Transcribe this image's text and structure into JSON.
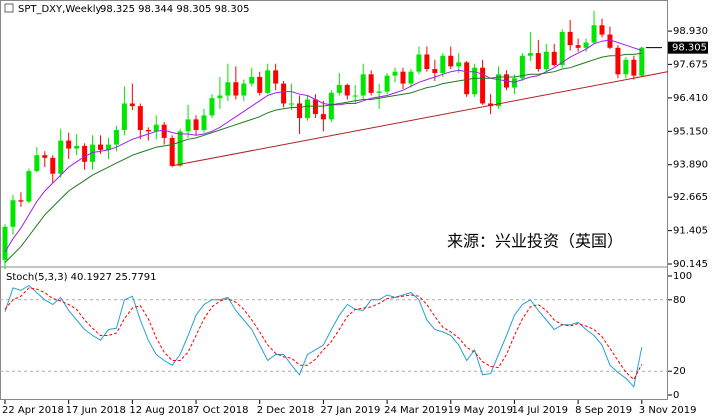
{
  "chart_data": [
    {
      "type": "candlestick",
      "title": "SPT_DXY,Weekly",
      "subtitle": "98.325 98.344 98.305 98.305",
      "open": [
        90.3,
        91.55,
        92.55,
        92.5,
        93.65,
        94.25,
        94.15,
        93.55,
        94.8,
        94.5,
        94.6,
        94.0,
        94.65,
        94.45,
        94.65,
        95.2,
        96.2,
        96.1,
        95.2,
        95.15,
        95.4,
        94.9,
        93.85,
        95.15,
        95.6,
        95.2,
        95.75,
        96.4,
        96.5,
        97.0,
        96.5,
        96.95,
        97.2,
        96.6,
        97.45,
        96.95,
        96.2,
        96.2,
        95.65,
        96.35,
        95.8,
        95.6,
        96.6,
        96.9,
        96.5,
        96.5,
        97.3,
        96.6,
        96.65,
        97.25,
        97.4,
        96.95,
        97.4,
        98.05,
        97.5,
        97.35,
        98.0,
        97.6,
        97.75,
        96.55,
        97.55,
        96.2,
        96.1,
        97.3,
        96.8,
        97.15,
        98.0,
        98.1,
        97.5,
        98.15,
        97.65,
        98.9,
        98.4,
        98.3,
        98.5,
        99.15,
        98.8,
        98.3,
        97.3,
        97.85,
        97.25
      ],
      "high": [
        91.65,
        92.75,
        92.85,
        93.75,
        94.55,
        94.4,
        94.25,
        95.25,
        95.1,
        95.05,
        94.7,
        95.0,
        95.0,
        94.9,
        95.35,
        96.85,
        96.95,
        96.2,
        95.3,
        95.75,
        95.5,
        95.0,
        95.25,
        96.15,
        95.75,
        96.0,
        96.55,
        97.2,
        97.7,
        97.6,
        97.1,
        97.55,
        97.4,
        97.7,
        97.7,
        97.05,
        96.95,
        96.5,
        96.5,
        96.55,
        96.3,
        96.7,
        97.35,
        96.95,
        96.9,
        97.7,
        97.45,
        96.95,
        97.35,
        97.55,
        97.55,
        97.5,
        98.35,
        98.35,
        97.85,
        98.1,
        98.35,
        98.1,
        97.8,
        97.7,
        97.85,
        96.55,
        97.6,
        97.45,
        97.3,
        98.1,
        98.9,
        98.6,
        98.45,
        98.45,
        99.0,
        99.35,
        98.65,
        98.65,
        99.7,
        99.4,
        99.1,
        98.4,
        97.95,
        98.0,
        98.35
      ],
      "low": [
        89.95,
        91.25,
        92.3,
        92.45,
        93.6,
        93.8,
        93.2,
        93.4,
        94.1,
        94.25,
        93.7,
        93.7,
        94.3,
        94.1,
        94.4,
        95.0,
        95.95,
        94.85,
        94.8,
        94.85,
        94.65,
        93.8,
        93.8,
        94.9,
        95.0,
        95.1,
        95.65,
        96.0,
        96.3,
        96.35,
        96.3,
        96.85,
        96.5,
        96.55,
        96.7,
        96.05,
        95.95,
        95.05,
        95.55,
        95.65,
        95.15,
        95.5,
        96.5,
        96.35,
        96.2,
        96.35,
        96.5,
        96.0,
        96.55,
        97.0,
        96.75,
        96.8,
        97.3,
        97.4,
        97.05,
        97.2,
        97.5,
        97.35,
        96.45,
        96.45,
        96.15,
        95.8,
        96.0,
        96.7,
        96.55,
        97.05,
        97.8,
        97.4,
        97.4,
        97.6,
        97.55,
        98.2,
        98.15,
        98.15,
        98.45,
        98.7,
        98.25,
        97.15,
        97.15,
        97.1,
        97.2
      ],
      "close": [
        91.55,
        92.55,
        92.5,
        93.65,
        94.25,
        94.15,
        93.55,
        94.8,
        94.5,
        94.6,
        94.0,
        94.65,
        94.45,
        94.65,
        95.2,
        96.2,
        96.1,
        95.2,
        95.15,
        95.4,
        94.9,
        93.85,
        95.15,
        95.6,
        95.2,
        95.75,
        96.4,
        96.5,
        97.0,
        96.5,
        96.95,
        97.2,
        96.6,
        97.45,
        96.95,
        96.2,
        96.2,
        95.65,
        96.35,
        95.8,
        95.6,
        96.6,
        96.9,
        96.5,
        96.5,
        97.3,
        96.6,
        96.65,
        97.25,
        97.4,
        96.95,
        97.4,
        98.05,
        97.5,
        97.35,
        98.0,
        97.6,
        97.75,
        96.55,
        97.55,
        96.2,
        96.1,
        97.3,
        96.8,
        97.15,
        98.0,
        98.1,
        97.5,
        98.15,
        97.65,
        98.9,
        98.4,
        98.3,
        98.5,
        99.15,
        98.8,
        98.3,
        97.3,
        97.85,
        97.25,
        98.305
      ],
      "up_color": "#00e600",
      "down_color": "#ff0000",
      "overlays": [
        {
          "color": "#a020f0",
          "values": [
            90.6,
            91.1,
            91.5,
            92.0,
            92.5,
            92.9,
            93.2,
            93.5,
            93.8,
            94.0,
            94.2,
            94.35,
            94.4,
            94.45,
            94.55,
            94.7,
            94.85,
            94.95,
            95.05,
            95.15,
            95.2,
            95.1,
            95.05,
            95.05,
            95.0,
            95.05,
            95.15,
            95.3,
            95.5,
            95.7,
            95.9,
            96.1,
            96.3,
            96.5,
            96.6,
            96.65,
            96.65,
            96.55,
            96.5,
            96.35,
            96.2,
            96.15,
            96.15,
            96.2,
            96.2,
            96.3,
            96.4,
            96.45,
            96.5,
            96.6,
            96.7,
            96.85,
            97.0,
            97.1,
            97.2,
            97.3,
            97.4,
            97.45,
            97.4,
            97.4,
            97.3,
            97.15,
            97.1,
            97.05,
            97.0,
            97.1,
            97.2,
            97.25,
            97.4,
            97.55,
            97.75,
            97.95,
            98.1,
            98.25,
            98.45,
            98.55,
            98.6,
            98.5,
            98.4,
            98.3,
            98.2
          ]
        },
        {
          "color": "#1f7a1f",
          "values": [
            90.2,
            90.5,
            90.8,
            91.2,
            91.6,
            92.0,
            92.3,
            92.6,
            92.9,
            93.1,
            93.3,
            93.5,
            93.65,
            93.8,
            93.95,
            94.1,
            94.25,
            94.35,
            94.45,
            94.55,
            94.6,
            94.65,
            94.75,
            94.85,
            94.9,
            95.0,
            95.1,
            95.2,
            95.3,
            95.4,
            95.5,
            95.6,
            95.7,
            95.85,
            95.95,
            96.0,
            96.05,
            96.05,
            96.1,
            96.1,
            96.1,
            96.15,
            96.2,
            96.25,
            96.3,
            96.35,
            96.35,
            96.4,
            96.45,
            96.5,
            96.55,
            96.6,
            96.7,
            96.8,
            96.85,
            96.95,
            97.0,
            97.05,
            97.1,
            97.15,
            97.15,
            97.15,
            97.2,
            97.2,
            97.2,
            97.25,
            97.3,
            97.3,
            97.35,
            97.4,
            97.5,
            97.55,
            97.65,
            97.75,
            97.85,
            97.95,
            98.0,
            98.0,
            98.05,
            98.05,
            98.1
          ]
        }
      ],
      "trendline": {
        "x": [
          21,
          83.3
        ],
        "y": [
          93.85,
          97.4
        ],
        "color": "#b22222"
      },
      "ylim": [
        90.07,
        99.99
      ],
      "yticks": [
        {
          "value": 98.93,
          "label": "98.930"
        },
        97.675,
        {
          "value": 96.41,
          "label": "96.410"
        },
        {
          "value": 95.15,
          "label": "95.150"
        },
        {
          "value": 93.89,
          "label": "93.890"
        },
        92.665,
        91.405,
        90.145
      ],
      "last_price": 98.305,
      "annotation": "来源：兴业投资（英国）"
    },
    {
      "type": "line",
      "title": "Stoch(5,3,3) 40.1927 25.7791",
      "categories": [
        "22 Apr 2018",
        null,
        null,
        null,
        null,
        null,
        null,
        null,
        "17 Jun 2018",
        null,
        null,
        null,
        null,
        null,
        null,
        null,
        "12 Aug 2018",
        null,
        null,
        null,
        null,
        null,
        null,
        null,
        "7 Oct 2018",
        null,
        null,
        null,
        null,
        null,
        null,
        null,
        "2 Dec 2018",
        null,
        null,
        null,
        null,
        null,
        null,
        null,
        "27 Jan 2019",
        null,
        null,
        null,
        null,
        null,
        null,
        null,
        "24 Mar 2019",
        null,
        null,
        null,
        null,
        null,
        null,
        null,
        "19 May 2019",
        null,
        null,
        null,
        null,
        null,
        null,
        null,
        "14 Jul 2019",
        null,
        null,
        null,
        null,
        null,
        null,
        null,
        "8 Sep 2019",
        null,
        null,
        null,
        null,
        null,
        null,
        null,
        "3 Nov 2019"
      ],
      "series": [
        {
          "color": "#2a9fd6",
          "dashed": false,
          "values": [
            70,
            90,
            88,
            92,
            86,
            80,
            76,
            82,
            71,
            63,
            55,
            50,
            46,
            55,
            56,
            80,
            83,
            63,
            46,
            34,
            29,
            25,
            34,
            50,
            67,
            76,
            80,
            80,
            82,
            71,
            63,
            55,
            42,
            29,
            34,
            34,
            25,
            17,
            34,
            38,
            42,
            55,
            67,
            76,
            72,
            71,
            80,
            80,
            84,
            82,
            84,
            86,
            80,
            63,
            55,
            53,
            50,
            42,
            29,
            38,
            17,
            18,
            34,
            50,
            67,
            76,
            80,
            71,
            63,
            55,
            59,
            59,
            61,
            55,
            50,
            42,
            25,
            19,
            14,
            7,
            40.1927
          ]
        },
        {
          "color": "#ff0000",
          "dashed": true,
          "values": [
            72,
            80,
            83,
            90,
            89,
            86,
            81,
            79,
            76,
            72,
            63,
            56,
            50,
            50,
            52,
            64,
            73,
            75,
            64,
            48,
            36,
            29,
            29,
            36,
            50,
            64,
            74,
            79,
            81,
            78,
            72,
            63,
            53,
            42,
            35,
            32,
            31,
            25,
            25,
            30,
            38,
            45,
            55,
            66,
            72,
            73,
            74,
            77,
            81,
            82,
            83,
            84,
            83,
            76,
            66,
            57,
            53,
            48,
            40,
            36,
            28,
            24,
            23,
            34,
            50,
            64,
            74,
            76,
            71,
            63,
            59,
            58,
            60,
            58,
            55,
            49,
            39,
            29,
            19,
            13,
            25.7791
          ]
        }
      ],
      "ylim": [
        -4.2,
        106.7
      ],
      "yticks": [
        100,
        80,
        20,
        0
      ],
      "levels": [
        80,
        20
      ]
    }
  ]
}
